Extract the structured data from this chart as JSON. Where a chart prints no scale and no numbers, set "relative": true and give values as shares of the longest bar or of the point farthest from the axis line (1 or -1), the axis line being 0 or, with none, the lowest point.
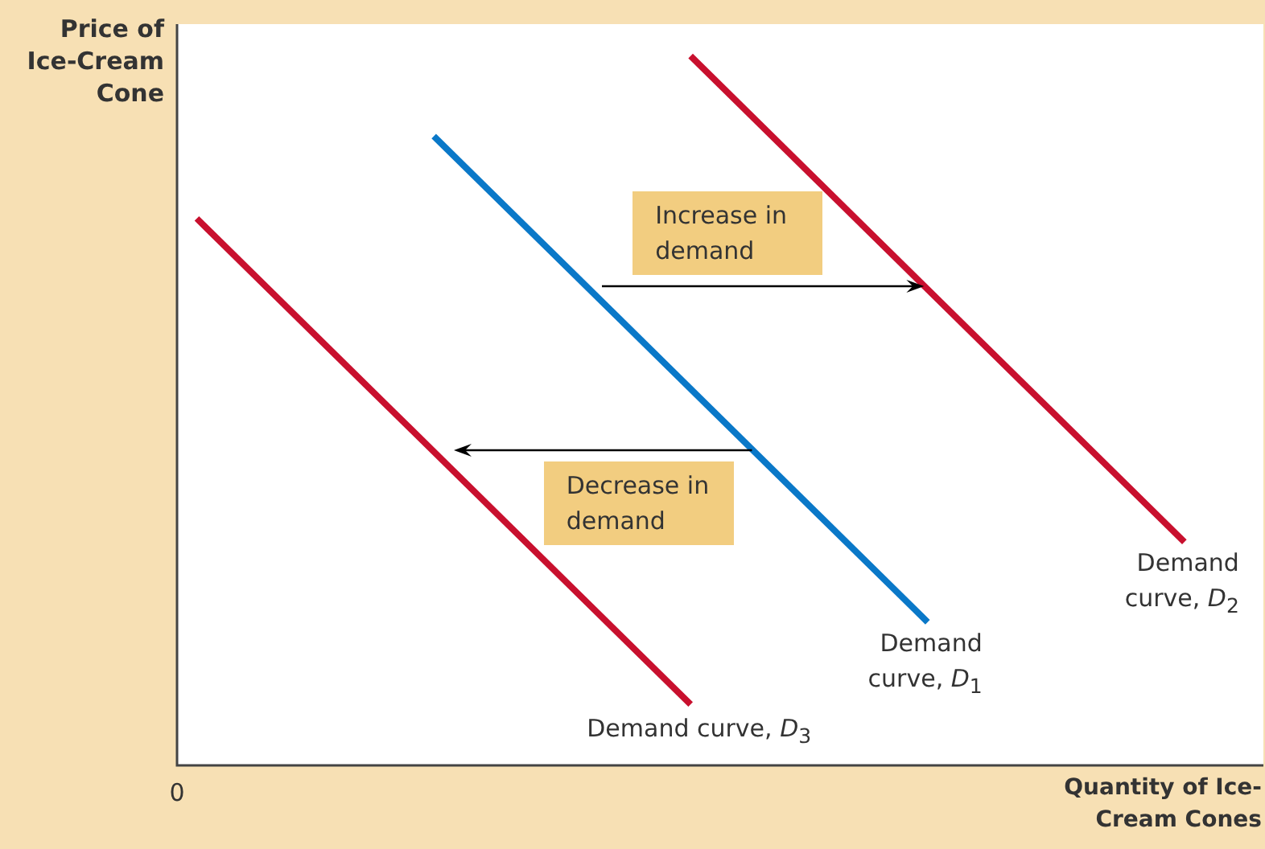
{
  "chart_data": {
    "type": "line",
    "relative": true,
    "xlabel": "Quantity of Ice-Cream Cones",
    "ylabel": "Price of Ice-Cream Cone",
    "categories": [
      null,
      null,
      null,
      null,
      null,
      null,
      null,
      null,
      null,
      null,
      null,
      null,
      null,
      null,
      null,
      null,
      null,
      null,
      null,
      null,
      null,
      null,
      null,
      null,
      null,
      null,
      null,
      null,
      null,
      null,
      null,
      null,
      null,
      null,
      null,
      null,
      null,
      null,
      null,
      null,
      null,
      null,
      null,
      null,
      null,
      null,
      null,
      null,
      null,
      null,
      null,
      null,
      null,
      null,
      null,
      null
    ],
    "series": [
      {
        "name": "Demand curve, D$_{2}$",
        "color": "#c8102e",
        "values": [
          null,
          null,
          null,
          null,
          null,
          null,
          null,
          null,
          null,
          null,
          null,
          null,
          null,
          null,
          null,
          null,
          null,
          null,
          null,
          null,
          null,
          null,
          null,
          null,
          null,
          null,
          1,
          null,
          null,
          null,
          null,
          null,
          null,
          null,
          null,
          null,
          null,
          null,
          null,
          null,
          null,
          null,
          null,
          null,
          null,
          null,
          null,
          null,
          null,
          null,
          null,
          0.315,
          null,
          null,
          null,
          null
        ]
      },
      {
        "name": "Demand curve, D$_{1}$",
        "color": "#0a78c8",
        "values": [
          null,
          null,
          null,
          null,
          null,
          null,
          null,
          null,
          null,
          null,
          null,
          null,
          null,
          0.887,
          null,
          null,
          null,
          null,
          null,
          null,
          null,
          null,
          null,
          null,
          null,
          null,
          null,
          null,
          null,
          null,
          null,
          null,
          null,
          null,
          null,
          null,
          null,
          null,
          0.202,
          null,
          null,
          null,
          null,
          null,
          null,
          null,
          null,
          null,
          null,
          null,
          null,
          null,
          null,
          null,
          null,
          null
        ]
      },
      {
        "name": "Demand curve, D$_{3}$",
        "color": "#c8102e",
        "values": [
          null,
          0.771,
          null,
          null,
          null,
          null,
          null,
          null,
          null,
          null,
          null,
          null,
          null,
          null,
          null,
          null,
          null,
          null,
          null,
          null,
          null,
          null,
          null,
          null,
          null,
          null,
          0.086,
          null,
          null,
          null,
          null,
          null,
          null,
          null,
          null,
          null,
          null,
          null,
          null,
          null,
          null,
          null,
          null,
          null,
          null,
          null,
          null,
          null,
          null,
          null,
          null,
          null,
          null,
          null,
          null,
          null
        ]
      }
    ],
    "annotations": [
      "Increase in demand",
      "Decrease in demand",
      "0"
    ],
    "legend": false,
    "marker": "none"
  }
}
